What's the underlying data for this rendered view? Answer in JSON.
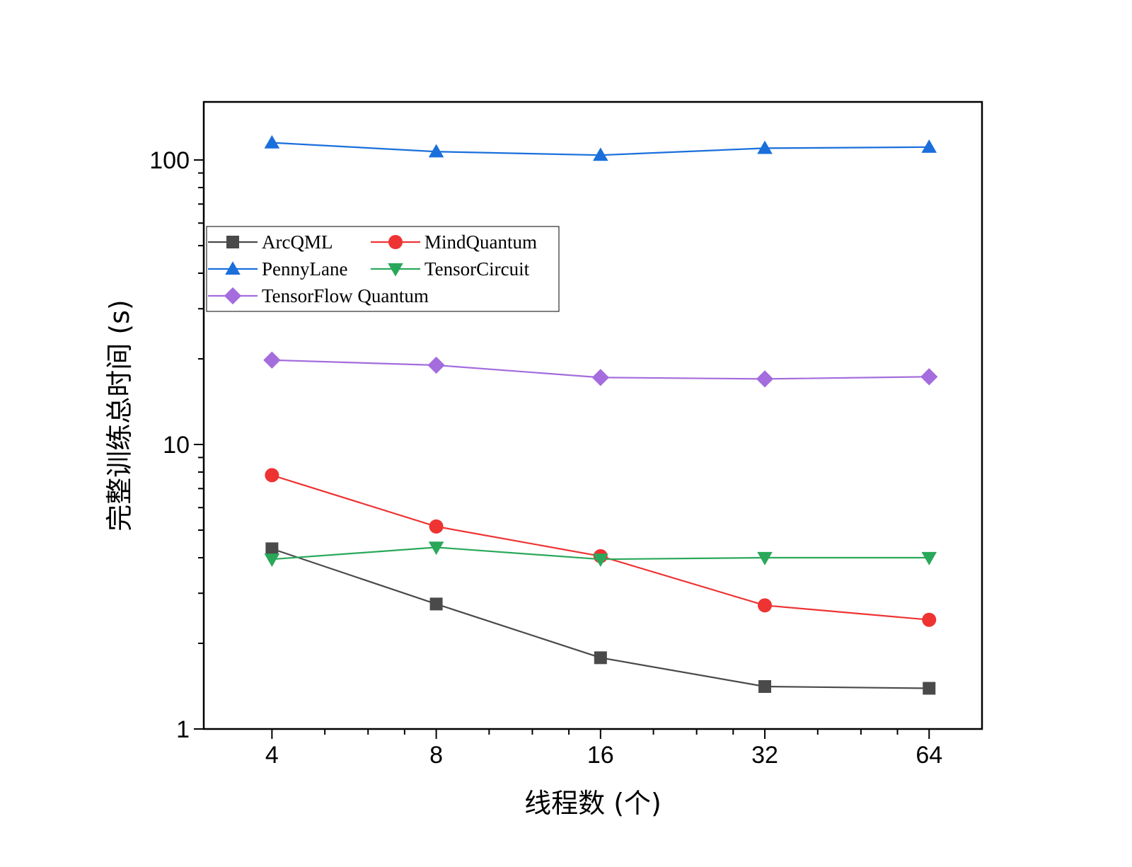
{
  "chart_data": {
    "type": "line",
    "xlabel": "线程数 (个)",
    "ylabel": "完整训练总时间 (s)",
    "x_scale": "log2",
    "y_scale": "log10",
    "x": [
      4,
      8,
      16,
      32,
      64
    ],
    "x_tick_labels": [
      "4",
      "8",
      "16",
      "32",
      "64"
    ],
    "y_tick_labels": [
      "1",
      "10",
      "100"
    ],
    "xlim": [
      3,
      80
    ],
    "ylim": [
      1,
      160
    ],
    "grid": false,
    "legend_position": "upper-left",
    "series": [
      {
        "name": "ArcQML",
        "values": [
          4.3,
          2.75,
          1.78,
          1.41,
          1.39
        ],
        "color": "#4a4a4a",
        "marker": "square"
      },
      {
        "name": "MindQuantum",
        "values": [
          7.8,
          5.15,
          4.05,
          2.72,
          2.42
        ],
        "color": "#ee3333",
        "marker": "circle"
      },
      {
        "name": "PennyLane",
        "values": [
          115,
          107,
          104,
          110,
          111
        ],
        "color": "#1a6fdb",
        "marker": "triangle-up"
      },
      {
        "name": "TensorCircuit",
        "values": [
          3.95,
          4.35,
          3.95,
          4.0,
          4.0
        ],
        "color": "#2aa85a",
        "marker": "triangle-down"
      },
      {
        "name": "TensorFlow Quantum",
        "values": [
          19.8,
          19.0,
          17.2,
          17.0,
          17.3
        ],
        "color": "#a46cdd",
        "marker": "diamond"
      }
    ]
  }
}
